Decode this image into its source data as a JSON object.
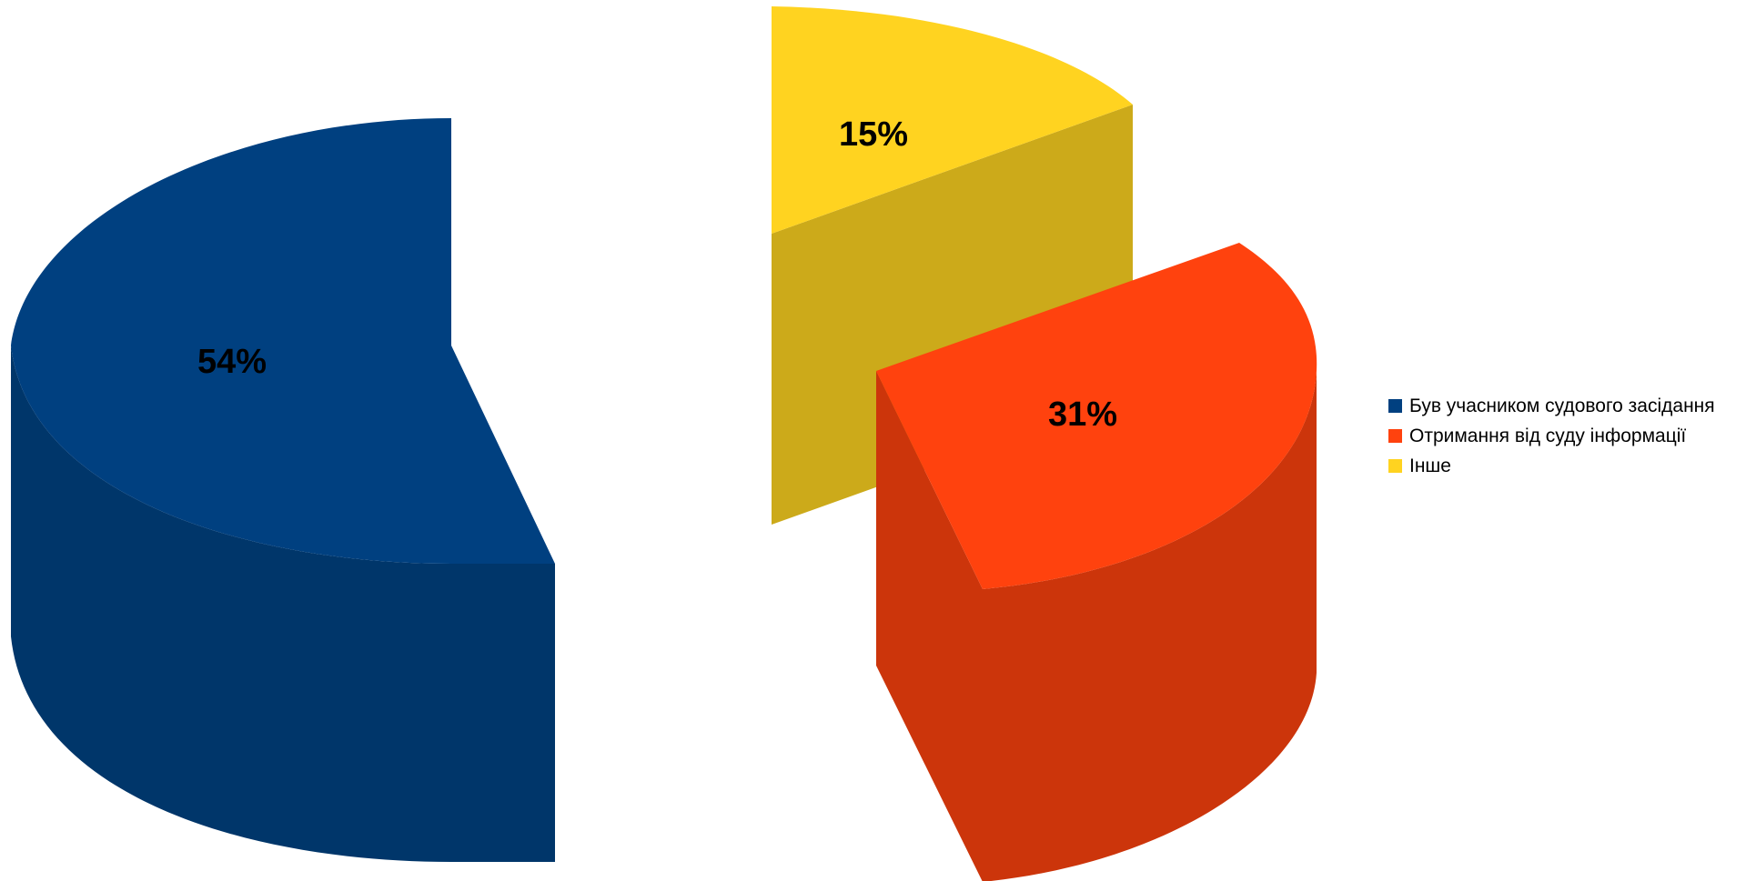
{
  "chart_data": {
    "type": "pie",
    "variant": "3d-exploded",
    "title": "",
    "slices": [
      {
        "name": "Був учасником судового засідання",
        "value": 54,
        "label": "54%",
        "color": "#004080",
        "side_color": "#00366a"
      },
      {
        "name": "Отримання від суду інформації",
        "value": 31,
        "label": "31%",
        "color": "#ff420e",
        "side_color": "#cc350b"
      },
      {
        "name": "Інше",
        "value": 15,
        "label": "15%",
        "color": "#ffd320",
        "side_color": "#ccaa1a"
      }
    ],
    "legend_position": "right"
  }
}
